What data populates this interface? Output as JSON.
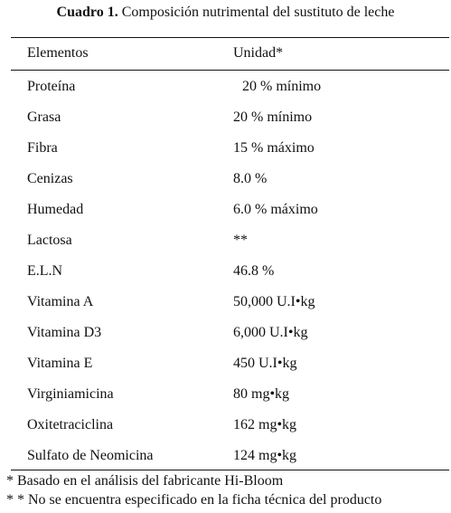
{
  "caption": {
    "label": "Cuadro 1.",
    "text": "Composición nutrimental del sustituto de leche"
  },
  "table": {
    "headers": [
      "Elementos",
      "Unidad*"
    ],
    "rows": [
      [
        "Proteína",
        "20 % mínimo"
      ],
      [
        "Grasa",
        "20 % mínimo"
      ],
      [
        "Fibra",
        "15 % máximo"
      ],
      [
        "Cenizas",
        "8.0 %"
      ],
      [
        "Humedad",
        "6.0 % máximo"
      ],
      [
        "Lactosa",
        "**"
      ],
      [
        "E.L.N",
        "46.8 %"
      ],
      [
        "Vitamina A",
        "50,000 U.I•kg"
      ],
      [
        "Vitamina D3",
        "6,000 U.I•kg"
      ],
      [
        "Vitamina E",
        "450 U.I•kg"
      ],
      [
        "Virginiamicina",
        "80 mg•kg"
      ],
      [
        "Oxitetraciclina",
        "162 mg•kg"
      ],
      [
        "Sulfato de Neomicina",
        "124 mg•kg"
      ]
    ]
  },
  "footnotes": [
    "* Basado en el análisis del fabricante Hi-Bloom",
    "* * No se encuentra especificado en la ficha técnica del producto"
  ]
}
